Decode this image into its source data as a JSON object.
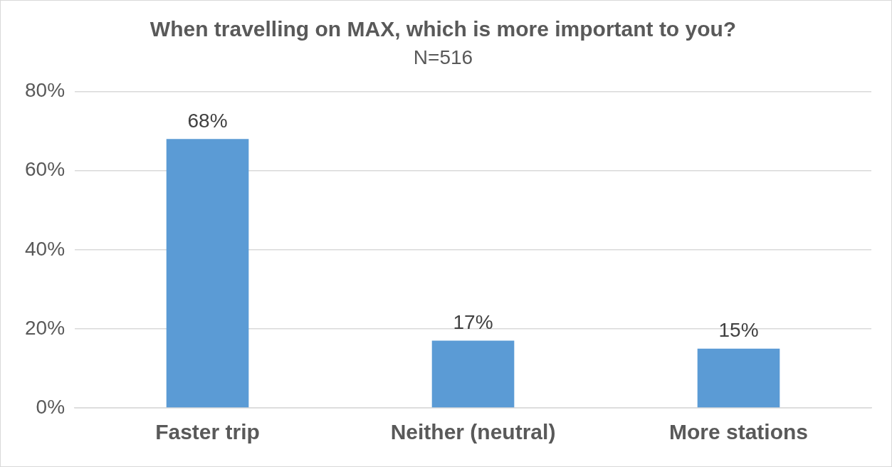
{
  "chart_data": {
    "type": "bar",
    "title": "When travelling on MAX, which is more important to you?",
    "subtitle": "N=516",
    "categories": [
      "Faster trip",
      "Neither (neutral)",
      "More stations"
    ],
    "values": [
      68,
      17,
      15
    ],
    "value_labels": [
      "68%",
      "17%",
      "15%"
    ],
    "color": "#5b9bd5",
    "ylim": [
      0,
      80
    ],
    "yticks": [
      {
        "value": 0,
        "label": "0%"
      },
      {
        "value": 20,
        "label": "20%"
      },
      {
        "value": 40,
        "label": "40%"
      },
      {
        "value": 60,
        "label": "60%"
      },
      {
        "value": 80,
        "label": "80%"
      }
    ],
    "grid": "y",
    "legend": false
  }
}
